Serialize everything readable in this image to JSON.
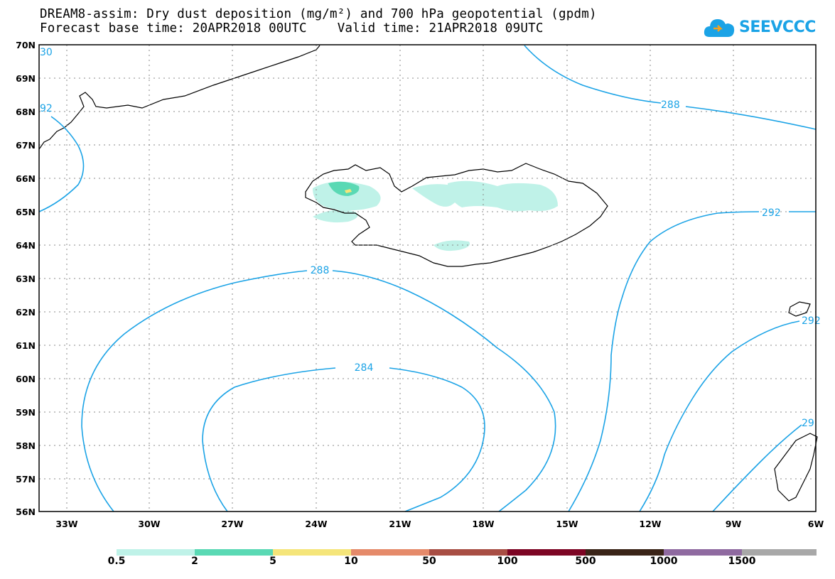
{
  "title": {
    "line1": "DREAM8-assim: Dry dust deposition (mg/m²) and 700 hPa geopotential (gpdm)",
    "line2": "Forecast base time: 20APR2018 00UTC    Valid time: 21APR2018 09UTC"
  },
  "logo": {
    "text": "SEEVCCC",
    "icon": "cloud-icon",
    "color": "#1ba3e6"
  },
  "map": {
    "lat_labels": [
      "70N",
      "69N",
      "68N",
      "67N",
      "66N",
      "65N",
      "64N",
      "63N",
      "62N",
      "61N",
      "60N",
      "59N",
      "58N",
      "57N",
      "56N"
    ],
    "lon_labels": [
      "33W",
      "30W",
      "27W",
      "24W",
      "21W",
      "18W",
      "15W",
      "12W",
      "9W",
      "6W"
    ],
    "contour_color": "#1ba3e6",
    "contour_labels": [
      "288",
      "292",
      "284",
      "288",
      "292",
      "29",
      "30",
      "92",
      "92"
    ]
  },
  "colorbar": {
    "colors": [
      "#bff2e8",
      "#5ad9b4",
      "#f5e57a",
      "#e58a6a",
      "#a84e44",
      "#7d0524",
      "#3a2418",
      "#8f6aa0",
      "#a8a8a8"
    ],
    "labels": [
      "0.5",
      "2",
      "5",
      "10",
      "50",
      "100",
      "500",
      "1000",
      "1500"
    ]
  },
  "chart_data": {
    "type": "map",
    "title": "DREAM8-assim: Dry dust deposition (mg/m²) and 700 hPa geopotential (gpdm)",
    "xlim": [
      "34W",
      "6W"
    ],
    "ylim": [
      "56N",
      "70N"
    ],
    "contours": [
      {
        "level": 288,
        "unit": "gpdm"
      },
      {
        "level": 284,
        "unit": "gpdm"
      },
      {
        "level": 292,
        "unit": "gpdm"
      }
    ],
    "deposition_thresholds": [
      0.5,
      2,
      5,
      10,
      50,
      100,
      500,
      1000,
      1500
    ]
  }
}
